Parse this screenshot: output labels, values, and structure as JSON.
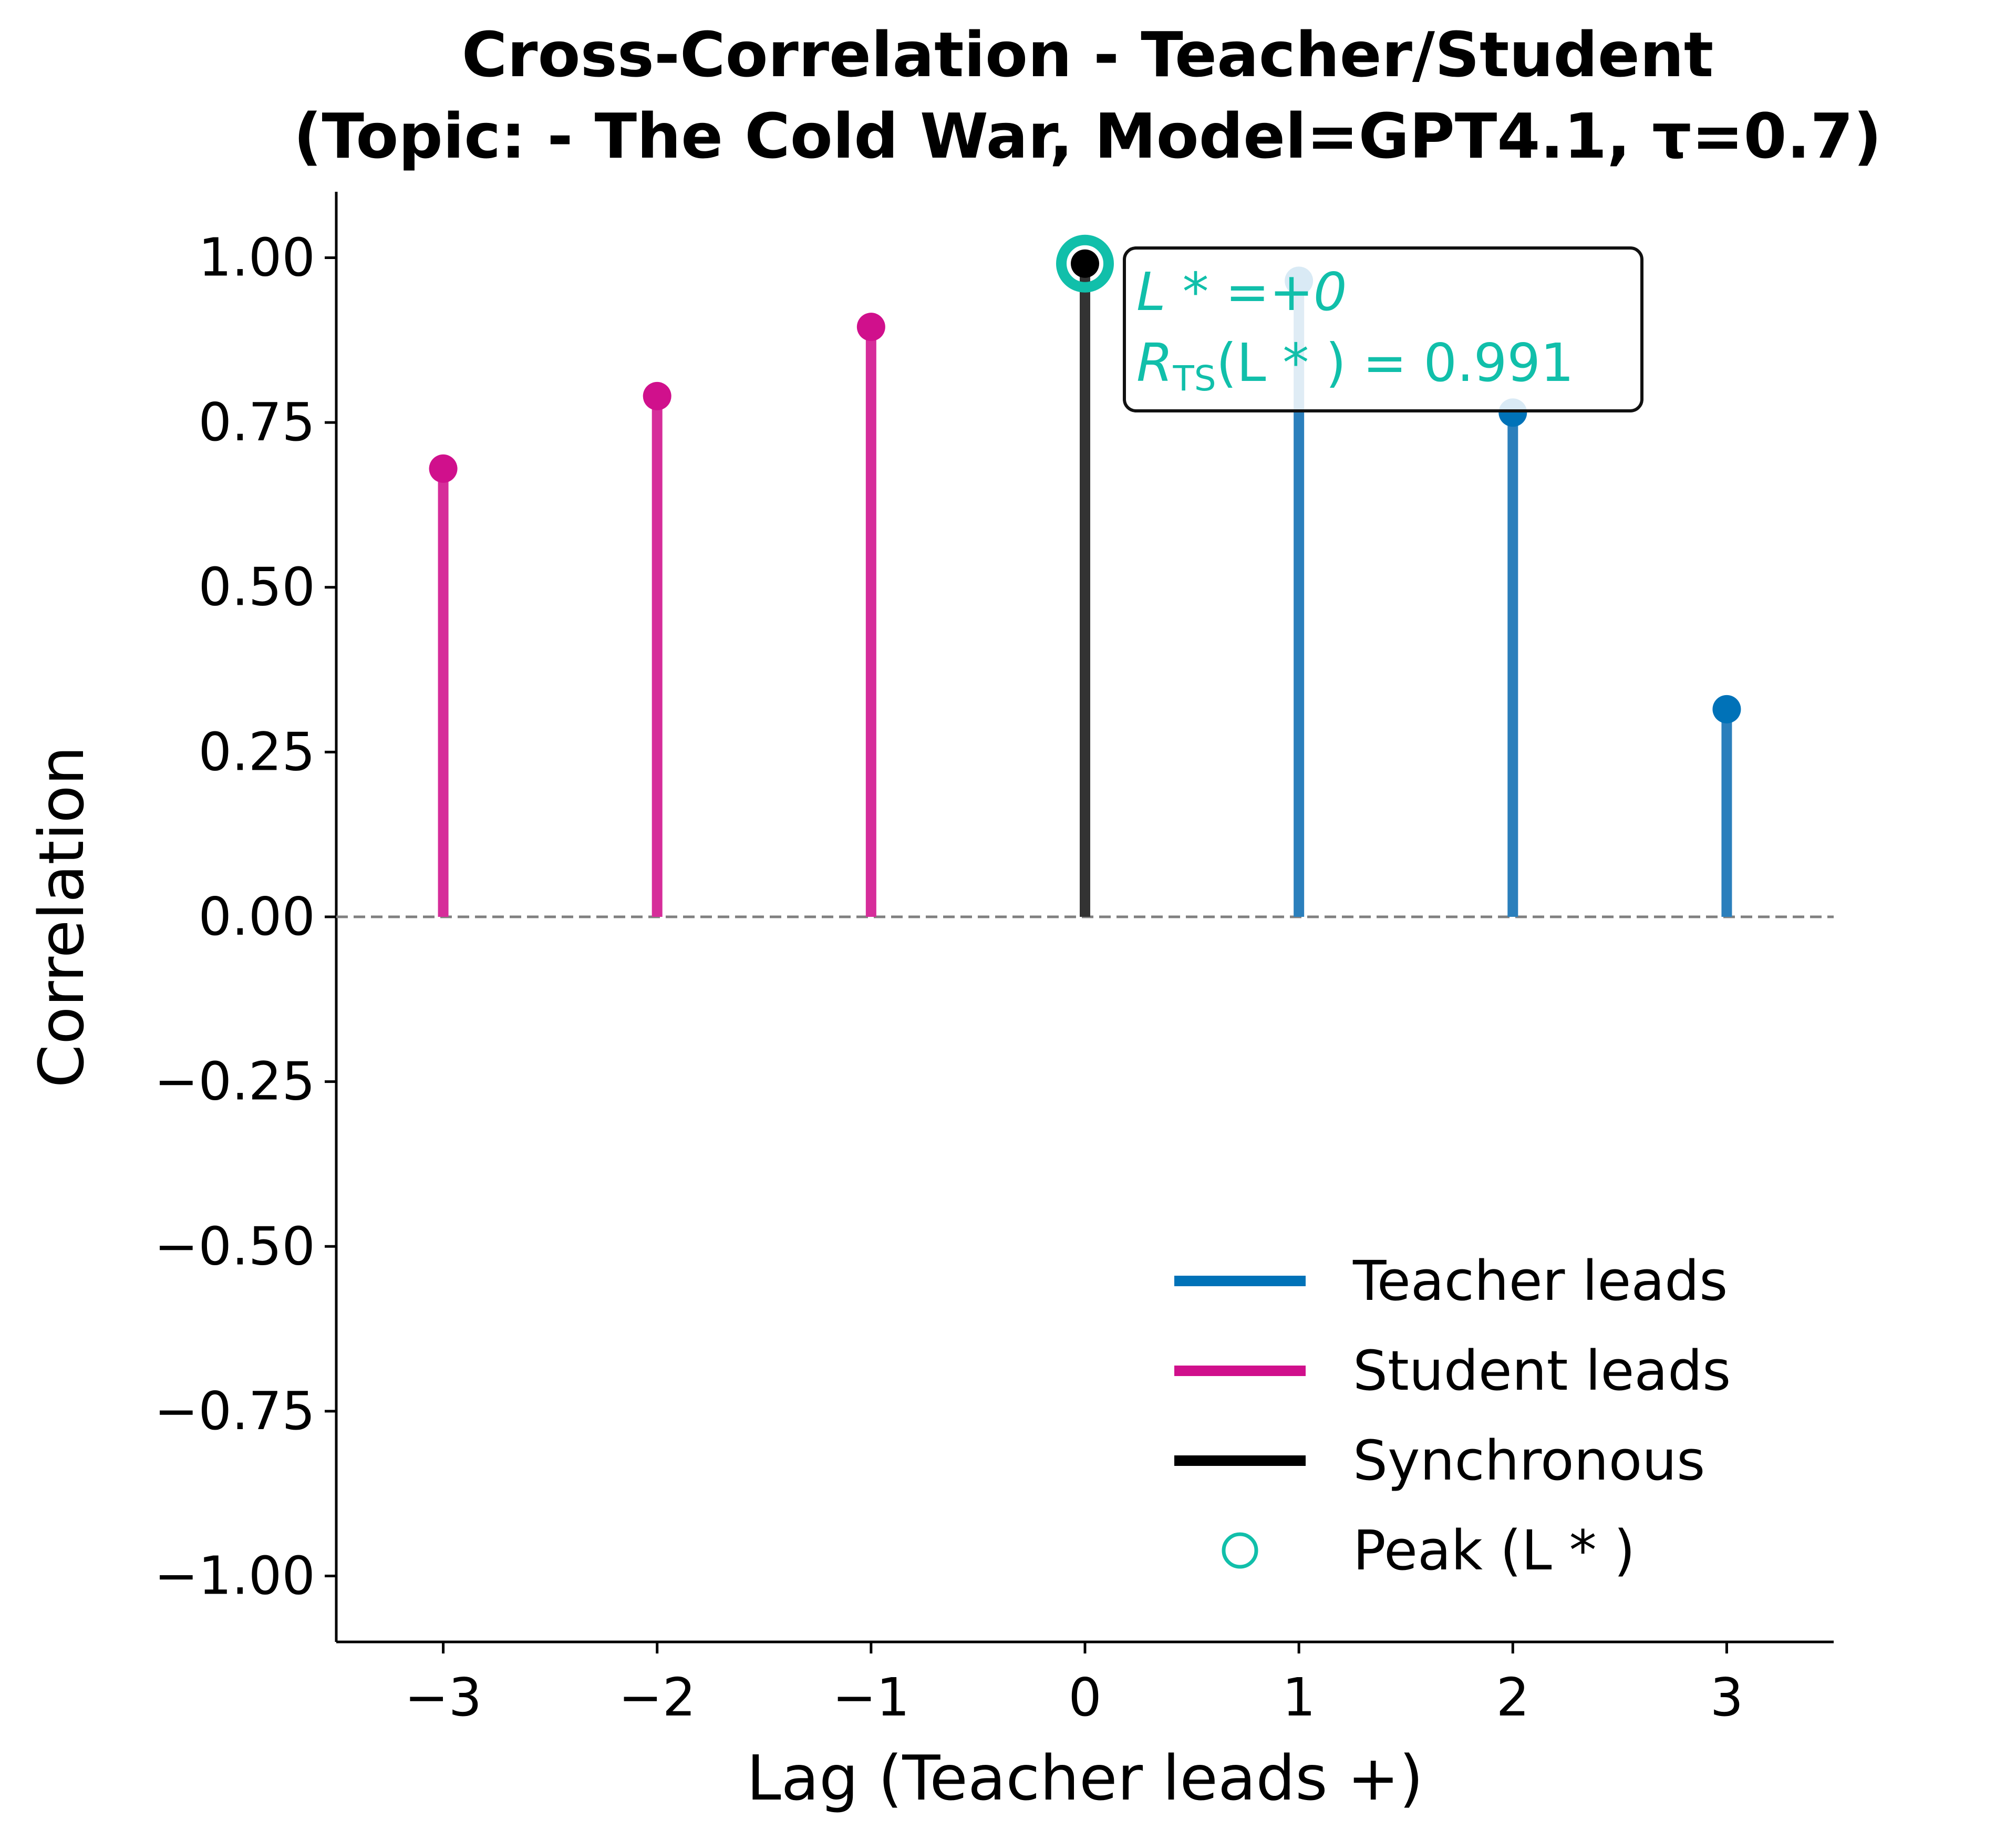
{
  "chart_data": {
    "type": "stem",
    "title_line1": "Cross-Correlation - Teacher/Student",
    "title_line2": "(Topic: - The Cold War, Model=GPT4.1, τ=0.7)",
    "xlabel": "Lag (Teacher leads +)",
    "ylabel": "Correlation",
    "xlim": [
      -3.5,
      3.5
    ],
    "ylim": [
      -1.1,
      1.1
    ],
    "xticks": [
      -3,
      -2,
      -1,
      0,
      1,
      2,
      3
    ],
    "xtick_labels": [
      "−3",
      "−2",
      "−1",
      "0",
      "1",
      "2",
      "3"
    ],
    "yticks": [
      1.0,
      0.75,
      0.5,
      0.25,
      0.0,
      -0.25,
      -0.5,
      -0.75,
      -1.0
    ],
    "ytick_labels": [
      "1.00",
      "0.75",
      "0.50",
      "0.25",
      "0.00",
      "−0.25",
      "−0.50",
      "−0.75",
      "−1.00"
    ],
    "zero_line": {
      "y": 0,
      "style": "dashed",
      "color": "#808080"
    },
    "points": [
      {
        "lag": -3,
        "value": 0.68,
        "group": "student"
      },
      {
        "lag": -2,
        "value": 0.79,
        "group": "student"
      },
      {
        "lag": -1,
        "value": 0.895,
        "group": "student"
      },
      {
        "lag": 0,
        "value": 0.991,
        "group": "sync"
      },
      {
        "lag": 1,
        "value": 0.965,
        "group": "teacher"
      },
      {
        "lag": 2,
        "value": 0.765,
        "group": "teacher"
      },
      {
        "lag": 3,
        "value": 0.315,
        "group": "teacher"
      }
    ],
    "colors": {
      "teacher_line": "#2b7fbc",
      "teacher_marker": "#0072b8",
      "student_line": "#d62d9a",
      "student_marker": "#d0108c",
      "sync_line": "#333333",
      "sync_marker": "#000000",
      "peak": "#11bfaa",
      "zero_line": "#808080"
    },
    "peak": {
      "lag": 0,
      "value": 0.991
    },
    "annotation": {
      "line1": "L * =+0",
      "line2_prefix": "R",
      "line2_sub": "TS",
      "line2_suffix": "(L * ) = 0.991"
    },
    "legend": {
      "placement": "lower right",
      "entries": [
        {
          "label": "Teacher leads",
          "kind": "line",
          "color": "#0072b8"
        },
        {
          "label": "Student leads",
          "kind": "line",
          "color": "#d0108c"
        },
        {
          "label": "Synchronous",
          "kind": "line",
          "color": "#000000"
        },
        {
          "label": "Peak (L * )",
          "kind": "circle",
          "color": "#11bfaa"
        }
      ]
    }
  }
}
